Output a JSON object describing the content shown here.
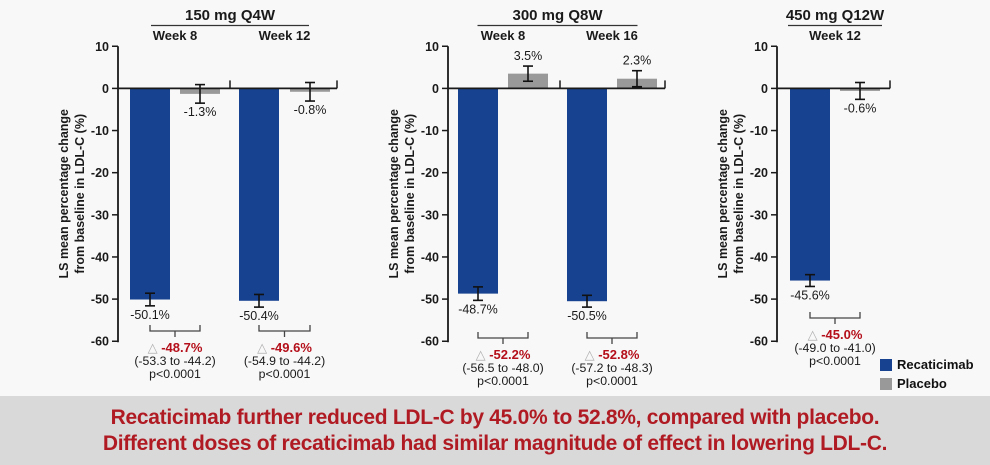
{
  "colors": {
    "recaticimab": "#17428f",
    "placebo": "#999999",
    "delta_red": "#b40f1a",
    "banner_text": "#b01b23",
    "banner_bg": "#d9d9d9",
    "axis": "#1a1a1a",
    "triangle_gray": "#b0b0b0",
    "page_bg": "#f8f8f8"
  },
  "ylabel_lines": [
    "LS mean percentage change",
    "from baseline in LDL-C (%)"
  ],
  "legend": {
    "items": [
      {
        "label": "Recaticimab",
        "color_key": "recaticimab"
      },
      {
        "label": "Placebo",
        "color_key": "placebo"
      }
    ]
  },
  "banner": {
    "line1": "Recaticimab further reduced LDL-C by 45.0% to 52.8%, compared with placebo.",
    "line2": "Different doses of recaticimab had similar magnitude of effect in lowering LDL-C."
  },
  "triangle_symbol": "△",
  "chart_data": [
    {
      "type": "bar",
      "title": "150 mg Q4W",
      "ylabel": "LS mean percentage change from baseline in LDL-C (%)",
      "ylim": [
        -60,
        10
      ],
      "yticks": [
        10,
        0,
        -10,
        -20,
        -30,
        -40,
        -50,
        -60
      ],
      "series_names": [
        "Recaticimab",
        "Placebo"
      ],
      "groups": [
        {
          "label": "Week 8",
          "bars": [
            {
              "series": "Recaticimab",
              "value": -50.1,
              "label": "-50.1%",
              "err": 1.5
            },
            {
              "series": "Placebo",
              "value": -1.3,
              "label": "-1.3%",
              "err": 2.2
            }
          ],
          "delta": {
            "value": "-48.7%",
            "ci": "(-53.3 to -44.2)",
            "p": "p<0.0001"
          }
        },
        {
          "label": "Week 12",
          "bars": [
            {
              "series": "Recaticimab",
              "value": -50.4,
              "label": "-50.4%",
              "err": 1.5
            },
            {
              "series": "Placebo",
              "value": -0.8,
              "label": "-0.8%",
              "err": 2.2
            }
          ],
          "delta": {
            "value": "-49.6%",
            "ci": "(-54.9 to -44.2)",
            "p": "p<0.0001"
          }
        }
      ]
    },
    {
      "type": "bar",
      "title": "300 mg Q8W",
      "ylabel": "LS mean percentage change from baseline in LDL-C (%)",
      "ylim": [
        -60,
        10
      ],
      "yticks": [
        10,
        0,
        -10,
        -20,
        -30,
        -40,
        -50,
        -60
      ],
      "series_names": [
        "Recaticimab",
        "Placebo"
      ],
      "groups": [
        {
          "label": "Week 8",
          "bars": [
            {
              "series": "Recaticimab",
              "value": -48.7,
              "label": "-48.7%",
              "err": 1.6
            },
            {
              "series": "Placebo",
              "value": 3.5,
              "label": "3.5%",
              "err": 1.8
            }
          ],
          "delta": {
            "value": "-52.2%",
            "ci": "(-56.5 to -48.0)",
            "p": "p<0.0001"
          }
        },
        {
          "label": "Week 16",
          "bars": [
            {
              "series": "Recaticimab",
              "value": -50.5,
              "label": "-50.5%",
              "err": 1.4
            },
            {
              "series": "Placebo",
              "value": 2.3,
              "label": "2.3%",
              "err": 1.9
            }
          ],
          "delta": {
            "value": "-52.8%",
            "ci": "(-57.2 to -48.3)",
            "p": "p<0.0001"
          }
        }
      ]
    },
    {
      "type": "bar",
      "title": "450 mg Q12W",
      "ylabel": "LS mean percentage change from baseline in LDL-C (%)",
      "ylim": [
        -60,
        10
      ],
      "yticks": [
        10,
        0,
        -10,
        -20,
        -30,
        -40,
        -50,
        -60
      ],
      "series_names": [
        "Recaticimab",
        "Placebo"
      ],
      "groups": [
        {
          "label": "Week 12",
          "bars": [
            {
              "series": "Recaticimab",
              "value": -45.6,
              "label": "-45.6%",
              "err": 1.4
            },
            {
              "series": "Placebo",
              "value": -0.6,
              "label": "-0.6%",
              "err": 2.0
            }
          ],
          "delta": {
            "value": "-45.0%",
            "ci": "(-49.0 to -41.0)",
            "p": "p<0.0001"
          }
        }
      ]
    }
  ]
}
